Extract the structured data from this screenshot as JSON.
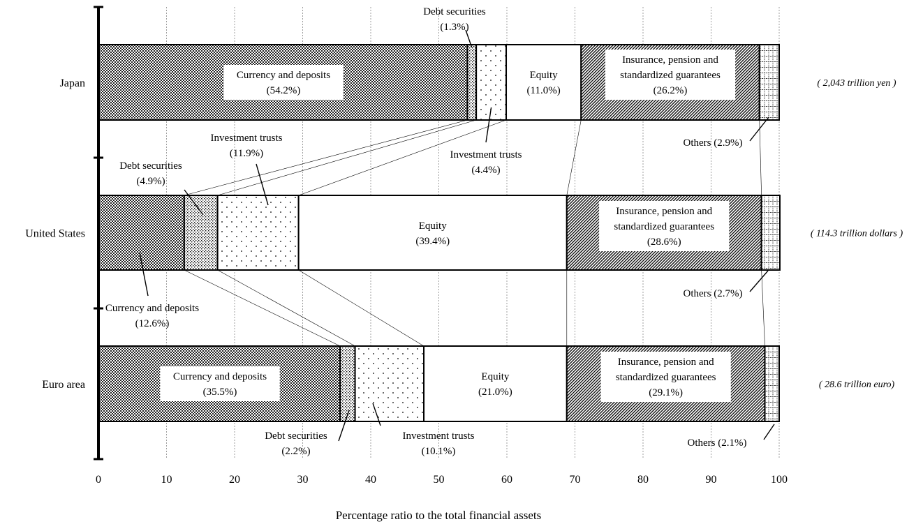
{
  "chart_data": {
    "type": "bar",
    "stacked": true,
    "orientation": "horizontal",
    "xlabel": "Percentage ratio to the total financial assets",
    "xlim": [
      0,
      100
    ],
    "x_ticks": [
      "0",
      "10",
      "20",
      "30",
      "40",
      "50",
      "60",
      "70",
      "80",
      "90",
      "100"
    ],
    "grid": "vertical dotted",
    "categories": [
      "Japan",
      "United States",
      "Euro area"
    ],
    "totals": [
      "( 2,043 trillion yen )",
      "( 114.3 trillion dollars )",
      "( 28.6 trillion euro)"
    ],
    "series": [
      {
        "name": "Currency and deposits",
        "values": [
          54.2,
          12.6,
          35.5
        ],
        "pattern": "crosshatch"
      },
      {
        "name": "Debt securities",
        "values": [
          1.3,
          4.9,
          2.2
        ],
        "pattern": "dense-dots"
      },
      {
        "name": "Investment trusts",
        "values": [
          4.4,
          11.9,
          10.1
        ],
        "pattern": "sparse-dots"
      },
      {
        "name": "Equity",
        "values": [
          11.0,
          39.4,
          21.0
        ],
        "pattern": "none"
      },
      {
        "name": "Insurance, pension and standardized guarantees",
        "values": [
          26.2,
          28.6,
          29.1
        ],
        "pattern": "diagonal"
      },
      {
        "name": "Others",
        "values": [
          2.9,
          2.7,
          2.1
        ],
        "pattern": "grid"
      }
    ],
    "labels": {
      "Japan": [
        [
          "Currency and deposits",
          "(54.2%)"
        ],
        [
          "Debt securities",
          "(1.3%)"
        ],
        [
          "Investment trusts",
          "(4.4%)"
        ],
        [
          "Equity",
          "(11.0%)"
        ],
        [
          "Insurance, pension and",
          "standardized guarantees",
          "(26.2%)"
        ],
        [
          "Others (2.9%)"
        ]
      ],
      "United States": [
        [
          "Currency and deposits",
          "(12.6%)"
        ],
        [
          "Debt securities",
          "(4.9%)"
        ],
        [
          "Investment trusts",
          "(11.9%)"
        ],
        [
          "Equity",
          "(39.4%)"
        ],
        [
          "Insurance, pension and",
          "standardized guarantees",
          "(28.6%)"
        ],
        [
          "Others (2.7%)"
        ]
      ],
      "Euro area": [
        [
          "Currency and deposits",
          "(35.5%)"
        ],
        [
          "Debt securities",
          "(2.2%)"
        ],
        [
          "Investment trusts",
          "(10.1%)"
        ],
        [
          "Equity",
          "(21.0%)"
        ],
        [
          "Insurance, pension and",
          "standardized guarantees",
          "(29.1%)"
        ],
        [
          "Others (2.1%)"
        ]
      ]
    }
  }
}
